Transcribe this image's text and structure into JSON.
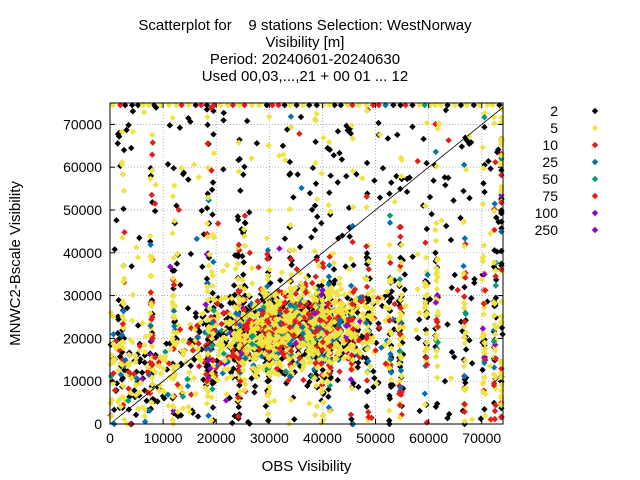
{
  "chart_data": {
    "type": "scatter",
    "title_lines": [
      "Scatterplot for    9 stations Selection: WestNorway",
      "Visibility [m]",
      "Period: 20240601-20240630",
      "Used 00,03,...,21 + 00 01 ... 12"
    ],
    "xlabel": "OBS Visibility",
    "ylabel": "MNWC2-Bscale Visibility",
    "xlim": [
      0,
      74000
    ],
    "ylim": [
      0,
      75000
    ],
    "x_ticks": [
      0,
      10000,
      20000,
      30000,
      40000,
      50000,
      60000,
      70000
    ],
    "y_ticks": [
      0,
      10000,
      20000,
      30000,
      40000,
      50000,
      60000,
      70000
    ],
    "grid": true,
    "diagonal_line": true,
    "legend_position": "right",
    "series": [
      {
        "name": "2",
        "color": "#000000",
        "weight": 0.3
      },
      {
        "name": "5",
        "color": "#f0e442",
        "weight": 0.45
      },
      {
        "name": "10",
        "color": "#e41a1c",
        "weight": 0.14
      },
      {
        "name": "25",
        "color": "#0072b2",
        "weight": 0.05
      },
      {
        "name": "50",
        "color": "#009e73",
        "weight": 0.02
      },
      {
        "name": "75",
        "color": "#e51e10",
        "weight": 0.02
      },
      {
        "name": "100",
        "color": "#9400d3",
        "weight": 0.01
      },
      {
        "name": "250",
        "color": "#9400d3",
        "weight": 0.01
      }
    ],
    "observation_columns": [
      2500,
      7800,
      12000,
      18500,
      19300,
      24300,
      25300,
      29800,
      34000,
      38800,
      40000,
      41300,
      45600,
      48500,
      52800,
      54700,
      59500,
      61500,
      66800,
      70400,
      72500
    ],
    "main_cluster": {
      "x_center": 34000,
      "y_center": 22000,
      "x_spread": 16000,
      "y_spread": 8000
    },
    "saturation_value_y": 74500
  }
}
